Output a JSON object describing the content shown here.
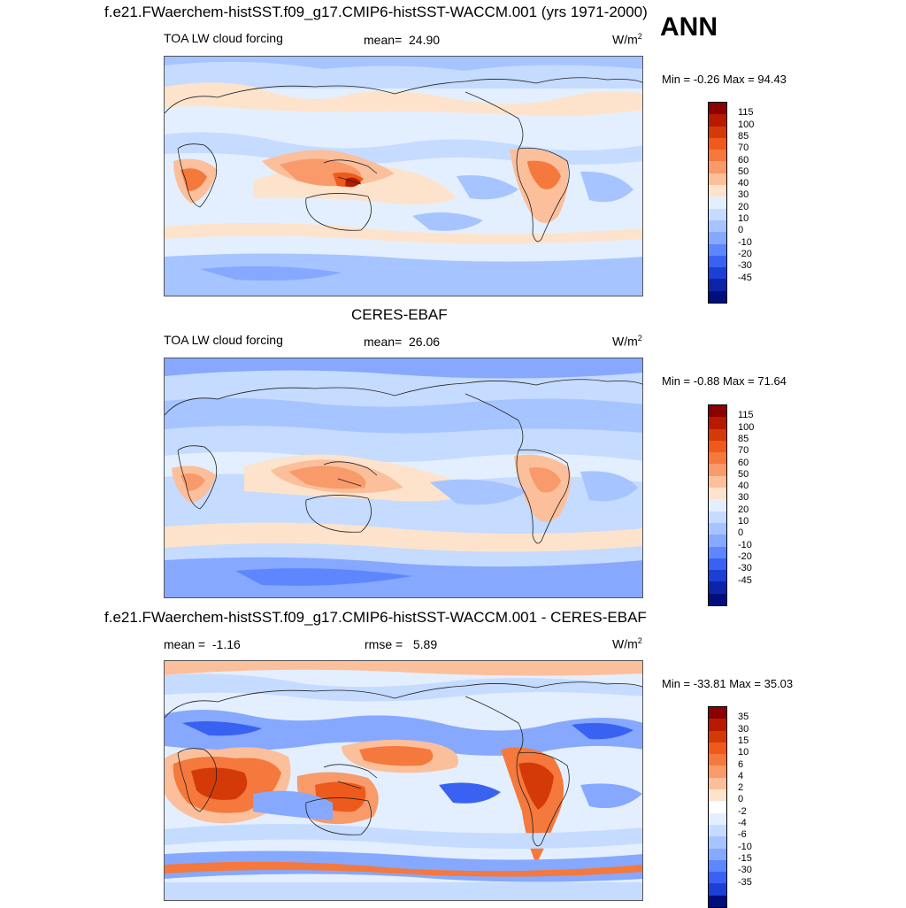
{
  "header": {
    "model_title": "f.e21.FWaerchem-histSST.f09_g17.CMIP6-histSST-WACCM.001 (yrs 1971-2000)",
    "season": "ANN"
  },
  "panels": [
    {
      "id": "model",
      "variable": "TOA LW cloud forcing",
      "stat_label": "mean=",
      "stat_value": "24.90",
      "units": "W/m",
      "units_sup": "2",
      "minmax_text": "Min =  -0.26 Max =  94.43",
      "colorbar_labels": [
        "115",
        "100",
        "85",
        "70",
        "60",
        "50",
        "40",
        "30",
        "20",
        "10",
        "0",
        "-10",
        "-20",
        "-30",
        "-45"
      ]
    },
    {
      "id": "obs",
      "title": "CERES-EBAF",
      "variable": "TOA LW cloud forcing",
      "stat_label": "mean=",
      "stat_value": "26.06",
      "units": "W/m",
      "units_sup": "2",
      "minmax_text": "Min =  -0.88 Max =  71.64",
      "colorbar_labels": [
        "115",
        "100",
        "85",
        "70",
        "60",
        "50",
        "40",
        "30",
        "20",
        "10",
        "0",
        "-10",
        "-20",
        "-30",
        "-45"
      ]
    },
    {
      "id": "diff",
      "title": "f.e21.FWaerchem-histSST.f09_g17.CMIP6-histSST-WACCM.001 - CERES-EBAF",
      "stat_label": "mean =",
      "stat_value": "-1.16",
      "rmse_label": "rmse =",
      "rmse_value": "5.89",
      "units": "W/m",
      "units_sup": "2",
      "minmax_text": "Min = -33.81 Max =  35.03",
      "colorbar_labels": [
        "35",
        "30",
        "15",
        "10",
        "6",
        "4",
        "2",
        "0",
        "-2",
        "-4",
        "-6",
        "-10",
        "-15",
        "-30",
        "-35"
      ]
    }
  ],
  "colors": {
    "mean_scale": [
      "#8b0000",
      "#b81a00",
      "#d43a08",
      "#ee5a1c",
      "#f5783c",
      "#f89a6a",
      "#fbbf9b",
      "#fde3cc",
      "#e3efff",
      "#c5dbff",
      "#a6c4ff",
      "#86a8ff",
      "#5e86ff",
      "#3a62f2",
      "#1c3fd6",
      "#0c25a8",
      "#000f7c"
    ],
    "diff_scale": [
      "#8b0000",
      "#b81a00",
      "#d43a08",
      "#ee5a1c",
      "#f5783c",
      "#f89a6a",
      "#fbbf9b",
      "#fde3cc",
      "#ffffff",
      "#e3efff",
      "#c5dbff",
      "#a6c4ff",
      "#86a8ff",
      "#5e86ff",
      "#3a62f2",
      "#1c3fd6",
      "#000f7c"
    ]
  }
}
